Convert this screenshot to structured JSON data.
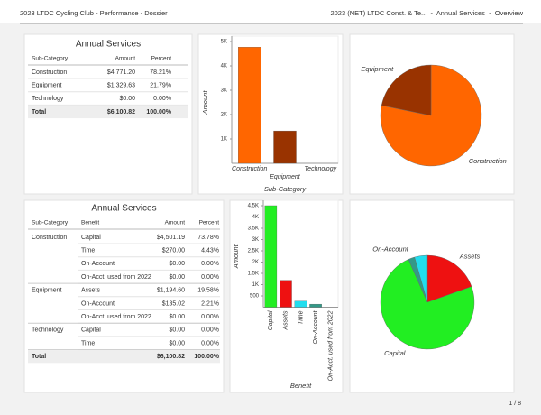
{
  "header": {
    "left": "2023 LTDC Cycling Club - Performance - Dossier",
    "right": "2023 (NET) LTDC Const. & Te...  -  Annual Services  -  Overview"
  },
  "footer": {
    "page": "1 / 8"
  },
  "tables": [
    {
      "title": "Annual Services",
      "columns": [
        "Sub-Category",
        "Amount",
        "Percent"
      ],
      "rows": [
        [
          "Construction",
          "$4,771.20",
          "78.21%"
        ],
        [
          "Equipment",
          "$1,329.63",
          "21.79%"
        ],
        [
          "Technology",
          "$0.00",
          "0.00%"
        ]
      ],
      "total": [
        "Total",
        "$6,100.82",
        "100.00%"
      ]
    },
    {
      "title": "Annual Services",
      "columns": [
        "Sub-Category",
        "Benefit",
        "Amount",
        "Percent"
      ],
      "groups": [
        {
          "name": "Construction",
          "rows": [
            [
              "Capital",
              "$4,501.19",
              "73.78%"
            ],
            [
              "Time",
              "$270.00",
              "4.43%"
            ],
            [
              "On-Account",
              "$0.00",
              "0.00%"
            ],
            [
              "On-Acct. used from 2022",
              "$0.00",
              "0.00%"
            ]
          ]
        },
        {
          "name": "Equipment",
          "rows": [
            [
              "Assets",
              "$1,194.60",
              "19.58%"
            ],
            [
              "On-Account",
              "$135.02",
              "2.21%"
            ],
            [
              "On-Acct. used from 2022",
              "$0.00",
              "0.00%"
            ]
          ]
        },
        {
          "name": "Technology",
          "rows": [
            [
              "Capital",
              "$0.00",
              "0.00%"
            ],
            [
              "Time",
              "$0.00",
              "0.00%"
            ]
          ]
        }
      ],
      "total": [
        "Total",
        "$6,100.82",
        "100.00%"
      ]
    }
  ],
  "chart_data": [
    {
      "type": "bar",
      "x_label": "Sub-Category",
      "y_label": "Amount",
      "categories": [
        "Construction",
        "Equipment",
        "Technology"
      ],
      "values": [
        4771.2,
        1329.63,
        0
      ],
      "colors": [
        "#ff6600",
        "#993300",
        "#888888"
      ],
      "ylim": [
        0,
        5000
      ],
      "yticks": [
        {
          "value": 1000,
          "label": "1K"
        },
        {
          "value": 2000,
          "label": "2K"
        },
        {
          "value": 3000,
          "label": "3K"
        },
        {
          "value": 4000,
          "label": "4K"
        },
        {
          "value": 5000,
          "label": "5K"
        }
      ]
    },
    {
      "type": "pie",
      "categories": [
        "Construction",
        "Equipment"
      ],
      "values": [
        78.21,
        21.79
      ],
      "colors": [
        "#ff6600",
        "#993300"
      ]
    },
    {
      "type": "bar",
      "x_label": "Benefit",
      "y_label": "Amount",
      "categories": [
        "Capital",
        "Assets",
        "Time",
        "On-Account",
        "On-Acct. used from 2022"
      ],
      "values": [
        4501.19,
        1194.6,
        270,
        135.02,
        0
      ],
      "colors": [
        "#22ee22",
        "#ee1111",
        "#22ddee",
        "#339988",
        "#555555"
      ],
      "ylim": [
        0,
        4500
      ],
      "yticks": [
        500,
        {
          "value": 1000,
          "label": "1K"
        },
        {
          "value": 1500,
          "label": "1.5K"
        },
        {
          "value": 2000,
          "label": "2K"
        },
        {
          "value": 2500,
          "label": "2.5K"
        },
        {
          "value": 3000,
          "label": "3K"
        },
        {
          "value": 3500,
          "label": "3.5K"
        },
        {
          "value": 4000,
          "label": "4K"
        },
        {
          "value": 4500,
          "label": "4.5K"
        }
      ]
    },
    {
      "type": "pie",
      "categories": [
        "Assets",
        "Capital",
        "On-Account",
        null
      ],
      "values": [
        19.58,
        73.78,
        2.21,
        4.43
      ],
      "colors": [
        "#ee1111",
        "#22ee22",
        "#339988",
        "#22ddee"
      ]
    }
  ]
}
